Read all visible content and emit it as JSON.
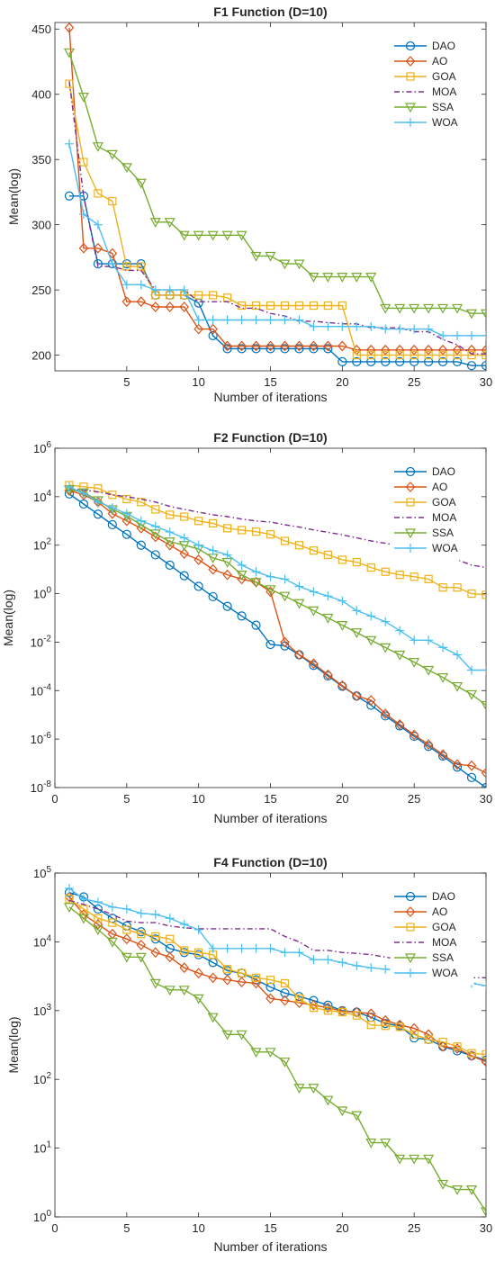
{
  "series_colors": {
    "DAO": "#0072BD",
    "AO": "#D95319",
    "GOA": "#EDB120",
    "MOA": "#7E2F8E",
    "SSA": "#77AC30",
    "WOA": "#4DBEEE"
  },
  "series_markers": {
    "DAO": "circle",
    "AO": "diamond",
    "GOA": "square",
    "MOA": "none",
    "SSA": "triangle-down",
    "WOA": "plus"
  },
  "chart_data": [
    {
      "type": "line",
      "title": "F1 Function (D=10)",
      "xlabel": "Number of iterations",
      "ylabel": "Mean(log)",
      "xlim": [
        0,
        30
      ],
      "ylim": [
        188,
        455
      ],
      "yscale": "linear",
      "xticks": [
        "5",
        "10",
        "15",
        "20",
        "25",
        "30"
      ],
      "yticks": [
        "200",
        "250",
        "300",
        "350",
        "400",
        "450"
      ],
      "legend_position": "top-right",
      "x": [
        1,
        2,
        3,
        4,
        5,
        6,
        7,
        8,
        9,
        10,
        11,
        12,
        13,
        14,
        15,
        16,
        17,
        18,
        19,
        20,
        21,
        22,
        23,
        24,
        25,
        26,
        27,
        28,
        29,
        30
      ],
      "series": [
        {
          "name": "DAO",
          "values": [
            322,
            322,
            270,
            270,
            270,
            270,
            246,
            246,
            246,
            240,
            215,
            205,
            205,
            205,
            205,
            205,
            205,
            205,
            205,
            195,
            195,
            195,
            195,
            195,
            195,
            195,
            195,
            195,
            192,
            192
          ]
        },
        {
          "name": "AO",
          "values": [
            451,
            282,
            282,
            278,
            241,
            241,
            237,
            237,
            237,
            220,
            220,
            207,
            207,
            207,
            207,
            207,
            207,
            207,
            207,
            207,
            204,
            204,
            204,
            204,
            204,
            204,
            204,
            204,
            204,
            204
          ]
        },
        {
          "name": "GOA",
          "values": [
            408,
            348,
            324,
            318,
            268,
            268,
            246,
            246,
            246,
            246,
            246,
            244,
            238,
            238,
            238,
            238,
            238,
            238,
            238,
            238,
            200,
            200,
            200,
            200,
            200,
            200,
            200,
            200,
            200,
            200
          ]
        },
        {
          "name": "MOA",
          "values": [
            410,
            322,
            268,
            268,
            265,
            265,
            250,
            250,
            250,
            241,
            241,
            241,
            236,
            236,
            232,
            230,
            226,
            226,
            225,
            224,
            224,
            221,
            221,
            221,
            218,
            218,
            212,
            208,
            201,
            201
          ]
        },
        {
          "name": "SSA",
          "values": [
            432,
            398,
            360,
            354,
            344,
            332,
            302,
            302,
            292,
            292,
            292,
            292,
            292,
            276,
            276,
            270,
            270,
            260,
            260,
            260,
            260,
            260,
            236,
            236,
            236,
            236,
            236,
            236,
            232,
            232
          ]
        },
        {
          "name": "WOA",
          "values": [
            362,
            308,
            300,
            270,
            254,
            254,
            250,
            250,
            250,
            227,
            227,
            227,
            227,
            227,
            227,
            227,
            227,
            222,
            222,
            222,
            222,
            222,
            220,
            220,
            220,
            220,
            215,
            215,
            215,
            215
          ]
        }
      ]
    },
    {
      "type": "line",
      "title": "F2 Function (D=10)",
      "xlabel": "Number of iterations",
      "ylabel": "Mean(log)",
      "xlim": [
        0,
        30
      ],
      "ylim": [
        1e-08,
        1000000.0
      ],
      "yscale": "log",
      "xticks": [
        "0",
        "5",
        "10",
        "15",
        "20",
        "25",
        "30"
      ],
      "yticks": [
        "10^-8",
        "10^-6",
        "10^-4",
        "10^-2",
        "10^0",
        "10^2",
        "10^4",
        "10^6"
      ],
      "legend_position": "top-right",
      "x": [
        1,
        2,
        3,
        4,
        5,
        6,
        7,
        8,
        9,
        10,
        11,
        12,
        13,
        14,
        15,
        16,
        17,
        18,
        19,
        20,
        21,
        22,
        23,
        24,
        25,
        26,
        27,
        28,
        29,
        30
      ],
      "series": [
        {
          "name": "DAO",
          "values": [
            13000.0,
            5000.0,
            1900.0,
            700,
            280,
            100,
            40,
            15,
            5.5,
            2,
            0.75,
            0.3,
            0.12,
            0.05,
            0.008,
            0.007,
            0.003,
            0.0011,
            0.0004,
            0.00015,
            6e-05,
            2.5e-05,
            9e-06,
            3.5e-06,
            1.3e-06,
            5e-07,
            2e-07,
            7e-08,
            2.6e-08,
            1e-08
          ]
        },
        {
          "name": "AO",
          "values": [
            18000.0,
            12000.0,
            6000.0,
            2000.0,
            1000.0,
            500,
            220,
            100,
            45,
            25,
            10,
            6,
            4,
            3,
            1.2,
            0.01,
            0.003,
            0.0013,
            0.00045,
            0.00016,
            6e-05,
            4e-05,
            1.1e-05,
            4e-06,
            1.5e-06,
            6e-07,
            2.3e-07,
            9e-08,
            8e-08,
            4e-08
          ]
        },
        {
          "name": "GOA",
          "values": [
            30000.0,
            26000.0,
            22000.0,
            12000.0,
            8000.0,
            6000.0,
            3000.0,
            1800.0,
            1500.0,
            1000.0,
            800,
            500,
            420,
            360,
            280,
            150,
            100,
            60,
            40,
            25,
            20,
            12,
            8,
            6,
            5,
            4,
            1.8,
            1.8,
            1,
            0.9
          ]
        },
        {
          "name": "MOA",
          "values": [
            21000.0,
            19000.0,
            16000.0,
            12000.0,
            10000.0,
            8000.0,
            6000.0,
            4000.0,
            3000.0,
            2300.0,
            1800.0,
            1500.0,
            1200.0,
            1000.0,
            900,
            700,
            560,
            430,
            340,
            270,
            200,
            150,
            120,
            95,
            80,
            60,
            40,
            25,
            15,
            12
          ]
        },
        {
          "name": "SSA",
          "values": [
            20000.0,
            15000.0,
            7000.0,
            3000.0,
            1600.0,
            700,
            300,
            140,
            100,
            70,
            30,
            20,
            6,
            3,
            1.5,
            0.8,
            0.4,
            0.2,
            0.1,
            0.05,
            0.025,
            0.012,
            0.006,
            0.003,
            0.0015,
            0.0007,
            0.00035,
            0.00015,
            7e-05,
            2.5e-05
          ]
        },
        {
          "name": "WOA",
          "values": [
            25000.0,
            14000.0,
            6000.0,
            3500.0,
            2000.0,
            1000.0,
            600,
            350,
            200,
            100,
            60,
            40,
            15,
            8,
            5,
            4,
            2,
            1.2,
            0.8,
            0.5,
            0.2,
            0.12,
            0.07,
            0.03,
            0.012,
            0.012,
            0.006,
            0.003,
            0.0007,
            0.0007
          ]
        }
      ]
    },
    {
      "type": "line",
      "title": "F4 Function (D=10)",
      "xlabel": "Number of iterations",
      "ylabel": "Mean(log)",
      "xlim": [
        0,
        30
      ],
      "ylim": [
        1,
        100000.0
      ],
      "yscale": "log",
      "xticks": [
        "0",
        "5",
        "10",
        "15",
        "20",
        "25",
        "30"
      ],
      "yticks": [
        "10^0",
        "10^1",
        "10^2",
        "10^3",
        "10^4",
        "10^5"
      ],
      "legend_position": "top-right",
      "x": [
        1,
        2,
        3,
        4,
        5,
        6,
        7,
        8,
        9,
        10,
        11,
        12,
        13,
        14,
        15,
        16,
        17,
        18,
        19,
        20,
        21,
        22,
        23,
        24,
        25,
        26,
        27,
        28,
        29,
        30
      ],
      "series": [
        {
          "name": "DAO",
          "values": [
            52000.0,
            45000.0,
            30000.0,
            22000.0,
            17000.0,
            14000.0,
            11000.0,
            8000.0,
            7000.0,
            6500.0,
            5000.0,
            3800.0,
            3500.0,
            2800.0,
            2200.0,
            1800.0,
            1600.0,
            1400.0,
            1200.0,
            1000.0,
            950,
            800,
            650,
            600,
            400,
            380,
            300,
            260,
            220,
            190
          ]
        },
        {
          "name": "AO",
          "values": [
            45000.0,
            25000.0,
            18000.0,
            13000.0,
            11000.0,
            9000.0,
            7000.0,
            6000.0,
            4200.0,
            3500.0,
            3000.0,
            2800.0,
            2600.0,
            2500.0,
            1500.0,
            1400.0,
            1300.0,
            1200.0,
            1100.0,
            980,
            950,
            900,
            720,
            620,
            550,
            450,
            300,
            280,
            220,
            180
          ]
        },
        {
          "name": "GOA",
          "values": [
            42000.0,
            30000.0,
            22000.0,
            19000.0,
            15000.0,
            13000.0,
            12000.0,
            11000.0,
            7500.0,
            7000.0,
            6500.0,
            4000.0,
            3500.0,
            3000.0,
            2800.0,
            2500.0,
            1500.0,
            1100.0,
            1000.0,
            950,
            850,
            620,
            600,
            580,
            450,
            380,
            350,
            300,
            240,
            230
          ]
        },
        {
          "name": "MOA",
          "values": [
            40000.0,
            35000.0,
            30000.0,
            25000.0,
            20000.0,
            19000.0,
            19000.0,
            17000.0,
            16000.0,
            15500.0,
            15500.0,
            15500.0,
            15500.0,
            15500.0,
            15500.0,
            12000.0,
            10000.0,
            7500.0,
            7500.0,
            7000.0,
            6800.0,
            6500.0,
            6000.0,
            5500.0,
            5000.0,
            4500.0,
            4000.0,
            3500.0,
            3000.0,
            3000.0
          ]
        },
        {
          "name": "SSA",
          "values": [
            32000.0,
            22000.0,
            15000.0,
            10000.0,
            6000.0,
            6000.0,
            2500.0,
            2000.0,
            2000.0,
            1500.0,
            800,
            450,
            450,
            250,
            250,
            180,
            75,
            75,
            50,
            35,
            30,
            12,
            12,
            7,
            7,
            7,
            3,
            2.5,
            2.5,
            1.2
          ]
        },
        {
          "name": "WOA",
          "values": [
            60000.0,
            42000.0,
            38000.0,
            32000.0,
            30000.0,
            26000.0,
            25000.0,
            22000.0,
            18000.0,
            15000.0,
            8000.0,
            8000.0,
            8000.0,
            8000.0,
            8000.0,
            7000.0,
            7000.0,
            5500.0,
            5500.0,
            5000.0,
            4500.0,
            4200.0,
            4000.0,
            3800.0,
            3500.0,
            3200.0,
            3000.0,
            2800.0,
            2500.0,
            2300.0
          ]
        }
      ]
    }
  ]
}
